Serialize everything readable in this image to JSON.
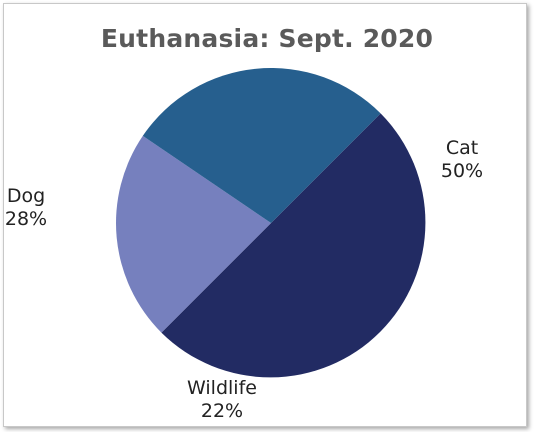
{
  "chart_data": {
    "type": "pie",
    "title": "Euthanasia: Sept. 2020",
    "slices": [
      {
        "label": "Cat",
        "value": 50,
        "value_label": "50%",
        "color": "#222b63"
      },
      {
        "label": "Wildlife",
        "value": 22,
        "value_label": "22%",
        "color": "#7680be"
      },
      {
        "label": "Dog",
        "value": 28,
        "value_label": "28%",
        "color": "#265f8e"
      }
    ],
    "start_angle_deg": -45,
    "direction": "clockwise",
    "legend": "none",
    "data_labels": "outside"
  }
}
